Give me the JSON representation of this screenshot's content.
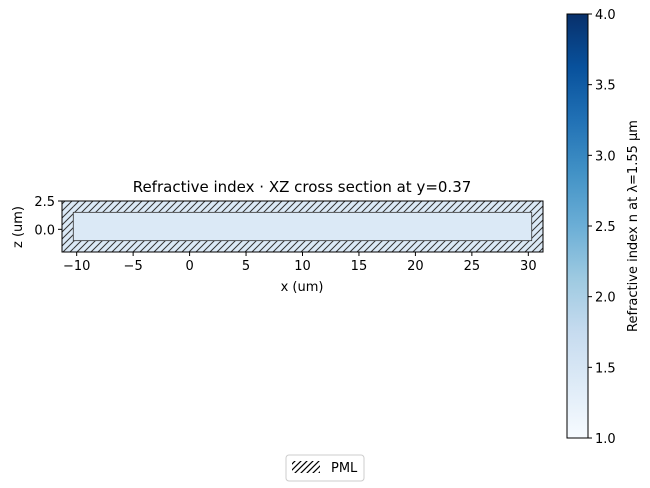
{
  "chart_data": {
    "type": "heatmap",
    "title": "Refractive index · XZ cross section at y=0.37",
    "xlabel": "x (um)",
    "ylabel": "z (um)",
    "xlim": [
      -11.3,
      31.3
    ],
    "ylim": [
      -2.0,
      2.5
    ],
    "xticks": [
      -10,
      -5,
      0,
      5,
      10,
      15,
      20,
      25,
      30
    ],
    "xtick_labels": [
      "−10",
      "−5",
      "0",
      "5",
      "10",
      "15",
      "20",
      "25",
      "30"
    ],
    "yticks": [
      0.0,
      2.5
    ],
    "ytick_labels": [
      "0.0",
      "2.5"
    ],
    "field": {
      "x_range": [
        -11.3,
        31.3
      ],
      "z_range": [
        -2.0,
        2.5
      ],
      "refractive_index": 1.44,
      "color": "#dbe9f6"
    },
    "pml": {
      "thickness_x": 1.0,
      "thickness_z": 1.0,
      "hatch": "////",
      "edge_color": "#333333"
    },
    "colorbar": {
      "label": "Refractive index n at λ=1.55 µm",
      "range": [
        1.0,
        4.0
      ],
      "ticks": [
        1.0,
        1.5,
        2.0,
        2.5,
        3.0,
        3.5,
        4.0
      ],
      "tick_labels": [
        "1.0",
        "1.5",
        "2.0",
        "2.5",
        "3.0",
        "3.5",
        "4.0"
      ],
      "colormap": "Blues",
      "color_low": "#f7fbff",
      "color_high": "#08306b"
    },
    "legend": {
      "placement": "bottom-center",
      "entries": [
        {
          "label": "PML",
          "hatch": "////"
        }
      ]
    },
    "grid": false
  }
}
